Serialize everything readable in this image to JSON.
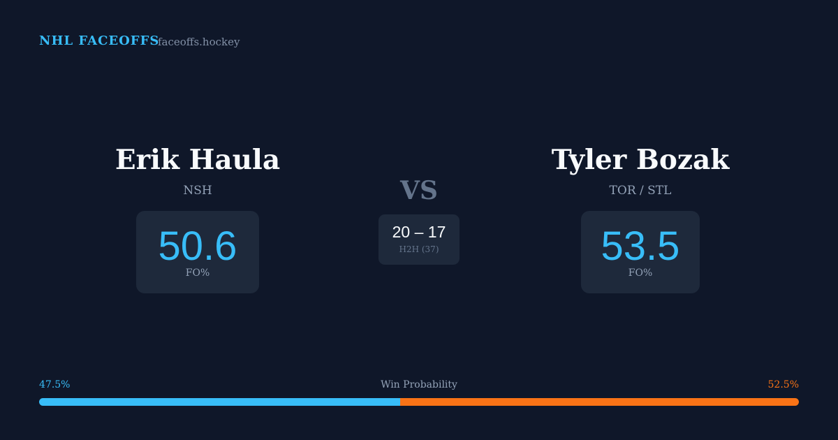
{
  "header": {
    "title": "NHL FACEOFFS",
    "site": "faceoffs.hockey"
  },
  "players": [
    {
      "name": "Erik Haula",
      "team": "NSH",
      "stat": "50.6",
      "stat_label": "FO%"
    },
    {
      "name": "Tyler Bozak",
      "team": "TOR / STL",
      "stat": "53.5",
      "stat_label": "FO%"
    }
  ],
  "versus": "VS",
  "h2h": {
    "score": "20 – 17",
    "label": "H2H (37)"
  },
  "win_probability": {
    "title": "Win Probability",
    "left": {
      "value": 47.5,
      "label": "47.5%",
      "color": "#38bdf8"
    },
    "right": {
      "value": 52.5,
      "label": "52.5%",
      "color": "#f97316"
    }
  }
}
